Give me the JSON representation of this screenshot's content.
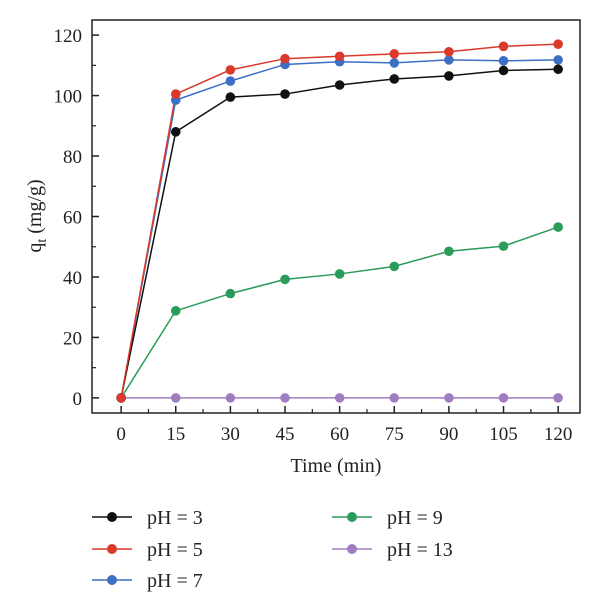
{
  "chart_data": {
    "type": "line",
    "title": "",
    "xlabel": "Time (min)",
    "ylabel_main": "q",
    "ylabel_sub": "t",
    "ylabel_unit": " (mg/g)",
    "x": [
      0,
      15,
      30,
      45,
      60,
      75,
      90,
      105,
      120
    ],
    "xticks": [
      "0",
      "15",
      "30",
      "45",
      "60",
      "75",
      "90",
      "105",
      "120"
    ],
    "yticks": [
      "0",
      "20",
      "40",
      "60",
      "80",
      "100",
      "120"
    ],
    "xlim": [
      -8,
      126
    ],
    "ylim": [
      -5,
      125
    ],
    "grid": false,
    "legend_position": "bottom",
    "series": [
      {
        "name": "pH = 3",
        "color": "#111111",
        "values": [
          0,
          88,
          99.5,
          100.5,
          103.5,
          105.5,
          106.5,
          108.3,
          108.7
        ]
      },
      {
        "name": "pH = 5",
        "color": "#d93a2b",
        "values": [
          0,
          100.5,
          108.5,
          112.2,
          113,
          113.8,
          114.5,
          116.3,
          117
        ]
      },
      {
        "name": "pH = 7",
        "color": "#3d6fc4",
        "values": [
          0,
          98.5,
          104.8,
          110.3,
          111.2,
          110.8,
          111.8,
          111.5,
          111.8
        ]
      },
      {
        "name": "pH = 9",
        "color": "#2a9b5a",
        "values": [
          0,
          28.8,
          34.5,
          39.2,
          41,
          43.5,
          48.5,
          50.2,
          56.5
        ]
      },
      {
        "name": "pH = 13",
        "color": "#a07cc0",
        "values": [
          0,
          0,
          0,
          0,
          0,
          0,
          0,
          0,
          0
        ]
      }
    ]
  }
}
